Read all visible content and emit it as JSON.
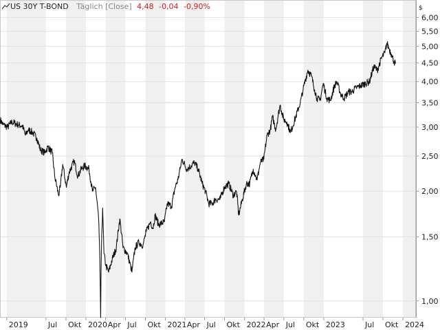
{
  "header": {
    "symbol": "US 30Y T-BOND",
    "period": "Täglich [Close]",
    "last": "4,48",
    "change": "-0,04",
    "change_pct": "-0,90%"
  },
  "colors": {
    "band_light": "#ffffff",
    "band_dark": "#f0f0f0",
    "grid": "#e2e2e2",
    "line": "#111111",
    "axis_text": "#222222",
    "negative": "#d11d1d"
  },
  "chart_data": {
    "type": "line",
    "title": "US 30Y T-BOND",
    "xlabel": "",
    "ylabel": "",
    "y_scale": "log",
    "currency": "$",
    "ylim": [
      0.9,
      6.7
    ],
    "xlim": [
      "2018-12-01",
      "2024-03-01"
    ],
    "grid": true,
    "y_ticks": [
      {
        "value": 1.0,
        "label": "1,00"
      },
      {
        "value": 1.5,
        "label": "1,50"
      },
      {
        "value": 2.0,
        "label": "2,00"
      },
      {
        "value": 2.5,
        "label": "2,50"
      },
      {
        "value": 3.0,
        "label": "3,00"
      },
      {
        "value": 3.5,
        "label": "3,50"
      },
      {
        "value": 4.0,
        "label": "4,00"
      },
      {
        "value": 4.5,
        "label": "4,50"
      },
      {
        "value": 5.0,
        "label": "5,00"
      },
      {
        "value": 5.5,
        "label": "5,50"
      },
      {
        "value": 6.0,
        "label": "6,00"
      }
    ],
    "x_ticks": [
      {
        "date": "2019-01-01",
        "label": "2019"
      },
      {
        "date": "2019-07-01",
        "label": "Jul"
      },
      {
        "date": "2019-10-01",
        "label": "Okt"
      },
      {
        "date": "2020-01-01",
        "label": "2020"
      },
      {
        "date": "2020-04-01",
        "label": "Apr"
      },
      {
        "date": "2020-07-01",
        "label": "Jul"
      },
      {
        "date": "2020-10-01",
        "label": "Okt"
      },
      {
        "date": "2021-01-01",
        "label": "2021"
      },
      {
        "date": "2021-04-01",
        "label": "Apr"
      },
      {
        "date": "2021-07-01",
        "label": "Jul"
      },
      {
        "date": "2021-10-01",
        "label": "Okt"
      },
      {
        "date": "2022-01-01",
        "label": "2022"
      },
      {
        "date": "2022-04-01",
        "label": "Apr"
      },
      {
        "date": "2022-07-01",
        "label": "Jul"
      },
      {
        "date": "2022-10-01",
        "label": "Okt"
      },
      {
        "date": "2023-01-01",
        "label": "2023"
      },
      {
        "date": "2023-07-01",
        "label": "Jul"
      },
      {
        "date": "2023-10-01",
        "label": "Okt"
      },
      {
        "date": "2024-01-01",
        "label": "2024"
      }
    ],
    "series": [
      {
        "points": [
          [
            "2018-12-01",
            3.15
          ],
          [
            "2018-12-15",
            3.05
          ],
          [
            "2019-01-05",
            3.0
          ],
          [
            "2019-01-25",
            3.1
          ],
          [
            "2019-02-20",
            3.05
          ],
          [
            "2019-03-15",
            3.02
          ],
          [
            "2019-03-28",
            2.85
          ],
          [
            "2019-04-10",
            2.95
          ],
          [
            "2019-05-01",
            2.9
          ],
          [
            "2019-05-20",
            2.8
          ],
          [
            "2019-06-05",
            2.6
          ],
          [
            "2019-06-25",
            2.55
          ],
          [
            "2019-07-10",
            2.65
          ],
          [
            "2019-07-30",
            2.55
          ],
          [
            "2019-08-10",
            2.2
          ],
          [
            "2019-08-28",
            1.95
          ],
          [
            "2019-09-05",
            2.05
          ],
          [
            "2019-09-16",
            2.37
          ],
          [
            "2019-10-03",
            2.05
          ],
          [
            "2019-10-15",
            2.25
          ],
          [
            "2019-11-08",
            2.42
          ],
          [
            "2019-11-25",
            2.2
          ],
          [
            "2019-12-10",
            2.3
          ],
          [
            "2019-12-27",
            2.35
          ],
          [
            "2020-01-15",
            2.3
          ],
          [
            "2020-01-31",
            2.0
          ],
          [
            "2020-02-14",
            2.05
          ],
          [
            "2020-02-28",
            1.7
          ],
          [
            "2020-03-05",
            1.3
          ],
          [
            "2020-03-09",
            0.9
          ],
          [
            "2020-03-12",
            1.35
          ],
          [
            "2020-03-18",
            1.8
          ],
          [
            "2020-03-24",
            1.35
          ],
          [
            "2020-04-02",
            1.25
          ],
          [
            "2020-04-15",
            1.2
          ],
          [
            "2020-05-01",
            1.3
          ],
          [
            "2020-05-20",
            1.4
          ],
          [
            "2020-06-05",
            1.68
          ],
          [
            "2020-06-20",
            1.4
          ],
          [
            "2020-07-10",
            1.35
          ],
          [
            "2020-07-31",
            1.2
          ],
          [
            "2020-08-15",
            1.4
          ],
          [
            "2020-09-01",
            1.45
          ],
          [
            "2020-09-20",
            1.42
          ],
          [
            "2020-10-05",
            1.55
          ],
          [
            "2020-10-25",
            1.65
          ],
          [
            "2020-11-05",
            1.58
          ],
          [
            "2020-11-15",
            1.72
          ],
          [
            "2020-12-01",
            1.62
          ],
          [
            "2020-12-28",
            1.65
          ],
          [
            "2021-01-10",
            1.85
          ],
          [
            "2021-01-30",
            1.82
          ],
          [
            "2021-02-15",
            2.05
          ],
          [
            "2021-02-28",
            2.15
          ],
          [
            "2021-03-10",
            2.3
          ],
          [
            "2021-03-19",
            2.45
          ],
          [
            "2021-04-10",
            2.3
          ],
          [
            "2021-04-30",
            2.35
          ],
          [
            "2021-05-15",
            2.4
          ],
          [
            "2021-06-01",
            2.3
          ],
          [
            "2021-06-20",
            2.1
          ],
          [
            "2021-07-05",
            2.0
          ],
          [
            "2021-07-20",
            1.85
          ],
          [
            "2021-08-04",
            1.85
          ],
          [
            "2021-08-20",
            1.9
          ],
          [
            "2021-09-10",
            1.9
          ],
          [
            "2021-09-30",
            2.05
          ],
          [
            "2021-10-20",
            2.1
          ],
          [
            "2021-11-10",
            1.95
          ],
          [
            "2021-11-25",
            2.0
          ],
          [
            "2021-12-05",
            1.72
          ],
          [
            "2021-12-22",
            1.9
          ],
          [
            "2022-01-10",
            2.1
          ],
          [
            "2022-01-25",
            2.1
          ],
          [
            "2022-02-10",
            2.3
          ],
          [
            "2022-02-28",
            2.15
          ],
          [
            "2022-03-15",
            2.4
          ],
          [
            "2022-03-31",
            2.45
          ],
          [
            "2022-04-15",
            2.85
          ],
          [
            "2022-04-30",
            2.95
          ],
          [
            "2022-05-10",
            3.2
          ],
          [
            "2022-05-25",
            2.95
          ],
          [
            "2022-06-14",
            3.45
          ],
          [
            "2022-06-30",
            3.15
          ],
          [
            "2022-07-15",
            3.1
          ],
          [
            "2022-08-01",
            2.9
          ],
          [
            "2022-08-25",
            3.2
          ],
          [
            "2022-09-15",
            3.5
          ],
          [
            "2022-09-28",
            3.8
          ],
          [
            "2022-10-20",
            4.3
          ],
          [
            "2022-11-05",
            4.15
          ],
          [
            "2022-11-20",
            3.8
          ],
          [
            "2022-12-01",
            3.6
          ],
          [
            "2022-12-15",
            3.55
          ],
          [
            "2022-12-30",
            3.95
          ],
          [
            "2023-01-15",
            3.6
          ],
          [
            "2023-02-01",
            3.55
          ],
          [
            "2023-02-20",
            3.9
          ],
          [
            "2023-03-02",
            4.0
          ],
          [
            "2023-03-20",
            3.7
          ],
          [
            "2023-04-05",
            3.6
          ],
          [
            "2023-04-25",
            3.75
          ],
          [
            "2023-05-10",
            3.75
          ],
          [
            "2023-05-31",
            3.85
          ],
          [
            "2023-06-20",
            3.9
          ],
          [
            "2023-07-10",
            3.95
          ],
          [
            "2023-07-31",
            4.0
          ],
          [
            "2023-08-20",
            4.4
          ],
          [
            "2023-09-05",
            4.3
          ],
          [
            "2023-09-25",
            4.65
          ],
          [
            "2023-10-10",
            4.8
          ],
          [
            "2023-10-19",
            5.1
          ],
          [
            "2023-10-31",
            4.9
          ],
          [
            "2023-11-10",
            4.75
          ],
          [
            "2023-11-20",
            4.55
          ],
          [
            "2023-11-28",
            4.48
          ]
        ]
      }
    ]
  }
}
